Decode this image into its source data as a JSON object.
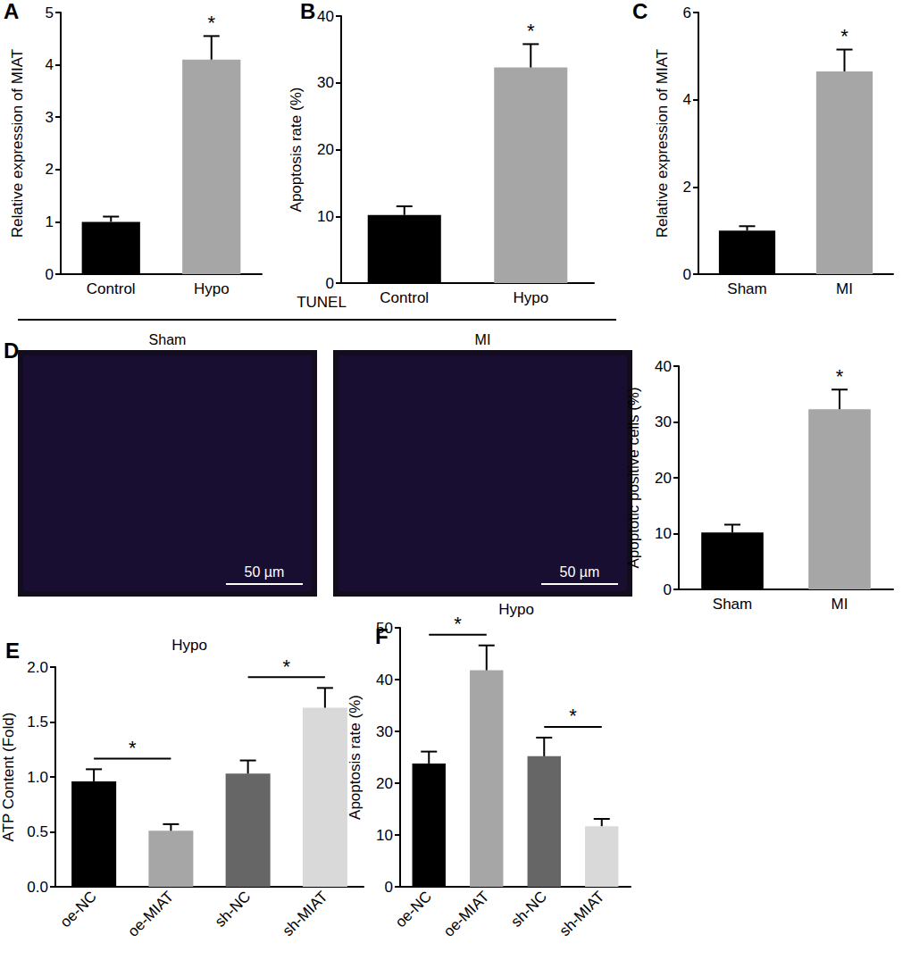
{
  "chart_data": [
    {
      "panel": "A",
      "type": "bar",
      "categories": [
        "Control",
        "Hypo"
      ],
      "values": [
        1.0,
        4.1
      ],
      "errors": [
        0.1,
        0.45
      ],
      "colors": [
        "#000000",
        "#a6a6a6"
      ],
      "y_label": "Relative expression of MIAT",
      "ylim": [
        0,
        5
      ],
      "yticks": [
        0,
        1,
        2,
        3,
        4,
        5
      ],
      "grid": false,
      "annotations": [
        {
          "category": "Hypo",
          "text": "*"
        }
      ]
    },
    {
      "panel": "B",
      "type": "bar",
      "categories": [
        "Control",
        "Hypo"
      ],
      "values": [
        10.2,
        32.3
      ],
      "errors": [
        1.3,
        3.5
      ],
      "colors": [
        "#000000",
        "#a6a6a6"
      ],
      "y_label": "Apoptosis rate (%)",
      "ylim": [
        0,
        40
      ],
      "yticks": [
        0,
        10,
        20,
        30,
        40
      ],
      "grid": false,
      "annotations": [
        {
          "category": "Hypo",
          "text": "*"
        }
      ]
    },
    {
      "panel": "C",
      "type": "bar",
      "categories": [
        "Sham",
        "MI"
      ],
      "values": [
        1.0,
        4.65
      ],
      "errors": [
        0.1,
        0.5
      ],
      "colors": [
        "#000000",
        "#a6a6a6"
      ],
      "y_label": "Relative expression of MIAT",
      "ylim": [
        0,
        6
      ],
      "yticks": [
        0,
        2,
        4,
        6
      ],
      "grid": false,
      "annotations": [
        {
          "category": "MI",
          "text": "*"
        }
      ]
    },
    {
      "panel": "D",
      "type": "bar",
      "title": "TUNEL",
      "images": [
        {
          "label": "Sham",
          "scale_bar": "50 µm"
        },
        {
          "label": "MI",
          "scale_bar": "50 µm"
        }
      ],
      "categories": [
        "Sham",
        "MI"
      ],
      "values": [
        10.2,
        32.3
      ],
      "errors": [
        1.4,
        3.5
      ],
      "colors": [
        "#000000",
        "#a6a6a6"
      ],
      "y_label": "Apoptotic positive cells (%)",
      "ylim": [
        0,
        40
      ],
      "yticks": [
        0,
        10,
        20,
        30,
        40
      ],
      "grid": false,
      "annotations": [
        {
          "category": "MI",
          "text": "*"
        }
      ]
    },
    {
      "panel": "E",
      "type": "bar",
      "title": "Hypo",
      "categories": [
        "oe-NC",
        "oe-MIAT",
        "sh-NC",
        "sh-MIAT"
      ],
      "values": [
        0.96,
        0.51,
        1.03,
        1.63
      ],
      "errors": [
        0.11,
        0.06,
        0.12,
        0.18
      ],
      "colors": [
        "#000000",
        "#a6a6a6",
        "#666666",
        "#d9d9d9"
      ],
      "y_label": "ATP Content (Fold)",
      "ylim": [
        0,
        2
      ],
      "yticks": [
        {
          "value": 0,
          "label": "0.0"
        },
        0.5,
        {
          "value": 1,
          "label": "1.0"
        },
        1.5,
        {
          "value": 2,
          "label": "2.0"
        }
      ],
      "grid": false,
      "comparisons": [
        {
          "categories": [
            "oe-NC",
            "oe-MIAT"
          ],
          "text": "*"
        },
        {
          "categories": [
            "sh-NC",
            "sh-MIAT"
          ],
          "text": "*"
        }
      ]
    },
    {
      "panel": "F",
      "type": "bar",
      "title": "Hypo",
      "categories": [
        "oe-NC",
        "oe-MIAT",
        "sh-NC",
        "sh-MIAT"
      ],
      "values": [
        23.8,
        41.8,
        25.2,
        11.7
      ],
      "errors": [
        2.3,
        4.8,
        3.6,
        1.4
      ],
      "colors": [
        "#000000",
        "#a6a6a6",
        "#666666",
        "#d9d9d9"
      ],
      "y_label": "Apoptosis rate (%)",
      "ylim": [
        0,
        50
      ],
      "yticks": [
        0,
        10,
        20,
        30,
        40,
        50
      ],
      "grid": false,
      "comparisons": [
        {
          "categories": [
            "oe-NC",
            "oe-MIAT"
          ],
          "text": "*"
        },
        {
          "categories": [
            "sh-NC",
            "sh-MIAT"
          ],
          "text": "*"
        }
      ]
    }
  ]
}
